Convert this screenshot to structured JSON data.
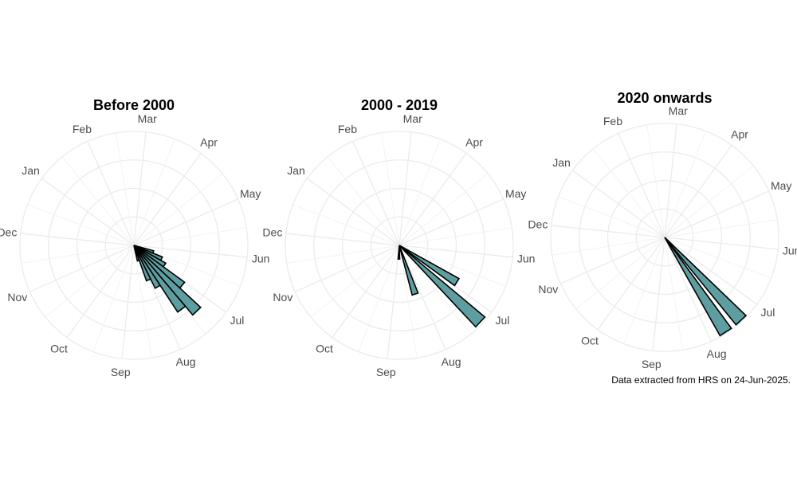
{
  "chart_data": [
    {
      "type": "bar",
      "polar": true,
      "title": "Before 2000",
      "categories": [
        "Jan",
        "Feb",
        "Mar",
        "Apr",
        "May",
        "Jun",
        "Jul",
        "Aug",
        "Sep",
        "Oct",
        "Nov",
        "Dec"
      ],
      "bar_color": "#5f9ea0",
      "bar_outline": "#000000",
      "series": [
        {
          "x": [
            "Jun 15",
            "Jun 22",
            "Jun 29",
            "Jul 6",
            "Jul 13",
            "Jul 20",
            "Jul 27",
            "Aug 3",
            "Aug 10"
          ],
          "values": [
            0.18,
            0.27,
            0.32,
            0.55,
            0.8,
            0.7,
            0.42,
            0.33,
            0.14
          ]
        }
      ]
    },
    {
      "type": "bar",
      "polar": true,
      "title": "2000 - 2019",
      "categories": [
        "Jan",
        "Feb",
        "Mar",
        "Apr",
        "May",
        "Jun",
        "Jul",
        "Aug",
        "Sep",
        "Oct",
        "Nov",
        "Dec"
      ],
      "bar_color": "#5f9ea0",
      "bar_outline": "#000000",
      "series": [
        {
          "x": [
            "Jun 29",
            "Jul 10",
            "Aug 8",
            "Aug 28"
          ],
          "values": [
            0.6,
            0.98,
            0.45,
            0.12
          ]
        }
      ]
    },
    {
      "type": "bar",
      "polar": true,
      "title": "2020 onwards",
      "categories": [
        "Jan",
        "Feb",
        "Mar",
        "Apr",
        "May",
        "Jun",
        "Jul",
        "Aug",
        "Sep",
        "Oct",
        "Nov",
        "Dec"
      ],
      "bar_color": "#5f9ea0",
      "bar_outline": "#000000",
      "series": [
        {
          "x": [
            "Jul 14",
            "Jul 24"
          ],
          "values": [
            0.99,
            0.99
          ]
        }
      ]
    }
  ],
  "caption": "Data extracted from HRS on 24-Jun-2025."
}
